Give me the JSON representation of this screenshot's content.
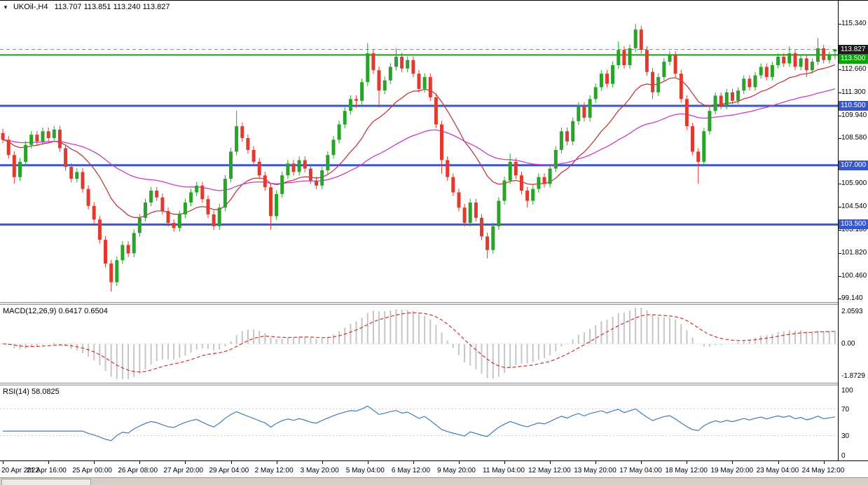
{
  "header": {
    "icon": "▼",
    "symbol_period": "UKOil-,H4",
    "ohlc": "113.707 113.851 113.240 113.827"
  },
  "indicators": {
    "macd_label": "MACD(12,26,9) 0.6417 0.6504",
    "rsi_label": "RSI(14) 58.0825"
  },
  "colors": {
    "up": "#28a428",
    "down": "#e13b30",
    "background": "#ffffff",
    "axis_text": "#000000"
  },
  "chart_data": {
    "type": "candlestick",
    "symbol": "UKOil-",
    "timeframe": "H4",
    "title": "UKOil-,H4 113.707 113.851 113.240 113.827",
    "ylim": [
      98.93,
      116.7
    ],
    "y_ticks": [
      115.34,
      112.66,
      111.3,
      109.94,
      108.58,
      105.9,
      104.54,
      103.18,
      101.82,
      100.46,
      99.14
    ],
    "y_badges": [
      {
        "text": "113.827",
        "color": "#1b1b1b"
      },
      {
        "text": "113.500",
        "color": "#0aa30a"
      },
      {
        "text": "110.500",
        "color": "#3a57c8"
      },
      {
        "text": "107.000",
        "color": "#3a57c8"
      },
      {
        "text": "103.500",
        "color": "#3a57c8"
      }
    ],
    "x_labels": [
      "20 Apr 2022",
      "21 Apr 16:00",
      "25 Apr 00:00",
      "26 Apr 08:00",
      "27 Apr 20:00",
      "29 Apr 04:00",
      "2 May 12:00",
      "3 May 20:00",
      "5 May 04:00",
      "6 May 12:00",
      "9 May 20:00",
      "11 May 04:00",
      "12 May 12:00",
      "13 May 20:00",
      "17 May 04:00",
      "18 May 12:00",
      "19 May 20:00",
      "23 May 04:00",
      "24 May 12:00"
    ],
    "h_lines": [
      {
        "price": 113.827,
        "color": "#888888",
        "width": 1,
        "style": "dashed"
      },
      {
        "price": 113.5,
        "color": "#0aa30a",
        "width": 2,
        "style": "solid"
      },
      {
        "price": 110.5,
        "color": "#3a57c8",
        "width": 3,
        "style": "solid"
      },
      {
        "price": 107.0,
        "color": "#3a57c8",
        "width": 3,
        "style": "solid"
      },
      {
        "price": 103.5,
        "color": "#3a57c8",
        "width": 3,
        "style": "solid"
      }
    ],
    "moving_averages": [
      {
        "type": "ema",
        "period": 16,
        "color": "#c03a3a"
      },
      {
        "type": "ema",
        "period": 50,
        "color": "#c93ac9"
      }
    ],
    "macd": {
      "fast": 12,
      "slow": 26,
      "signal": 9,
      "values_label": "0.6417 0.6504",
      "axis_labels": [
        "2.0593",
        "0.00",
        "-1.8729"
      ],
      "hist_color": "#c6c6c6",
      "signal_color": "#cc3333"
    },
    "rsi": {
      "period": 14,
      "value": 58.0825,
      "color": "#3f7cb6",
      "levels": [
        70,
        30
      ],
      "axis_labels": [
        "100",
        "70",
        "30",
        "0"
      ]
    },
    "candles": [
      [
        108.9,
        109.15,
        108.3,
        108.5
      ],
      [
        108.5,
        108.72,
        107.38,
        107.6
      ],
      [
        107.6,
        107.82,
        105.9,
        106.3
      ],
      [
        106.3,
        107.42,
        106.08,
        107.2
      ],
      [
        107.2,
        108.42,
        106.98,
        108.2
      ],
      [
        108.2,
        109.02,
        107.98,
        108.8
      ],
      [
        108.8,
        109.02,
        108.18,
        108.4
      ],
      [
        108.4,
        109.22,
        108.18,
        109.0
      ],
      [
        109.0,
        109.22,
        108.38,
        108.6
      ],
      [
        108.6,
        109.32,
        108.38,
        109.1
      ],
      [
        109.1,
        109.32,
        107.78,
        108.0
      ],
      [
        108.0,
        108.22,
        106.68,
        106.9
      ],
      [
        106.9,
        107.12,
        105.98,
        106.2
      ],
      [
        106.2,
        106.82,
        105.98,
        106.6
      ],
      [
        106.6,
        106.82,
        105.38,
        105.6
      ],
      [
        105.6,
        105.82,
        104.38,
        104.6
      ],
      [
        104.6,
        104.82,
        103.58,
        103.8
      ],
      [
        103.8,
        104.02,
        102.38,
        102.6
      ],
      [
        102.6,
        102.82,
        100.98,
        101.2
      ],
      [
        101.2,
        101.42,
        99.55,
        100.1
      ],
      [
        100.1,
        101.62,
        99.88,
        101.4
      ],
      [
        101.4,
        102.52,
        101.18,
        102.3
      ],
      [
        102.3,
        102.52,
        101.58,
        101.8
      ],
      [
        101.8,
        103.22,
        101.58,
        103.0
      ],
      [
        103.0,
        104.12,
        102.78,
        103.9
      ],
      [
        103.9,
        105.02,
        103.68,
        104.8
      ],
      [
        104.8,
        105.72,
        104.58,
        105.5
      ],
      [
        105.5,
        105.72,
        104.88,
        105.1
      ],
      [
        105.1,
        105.32,
        104.08,
        104.3
      ],
      [
        104.3,
        104.52,
        103.38,
        103.6
      ],
      [
        103.6,
        103.82,
        103.08,
        103.3
      ],
      [
        103.3,
        104.32,
        103.08,
        104.1
      ],
      [
        104.1,
        105.02,
        103.88,
        104.8
      ],
      [
        104.8,
        105.62,
        104.58,
        105.4
      ],
      [
        105.4,
        106.02,
        105.18,
        105.8
      ],
      [
        105.8,
        106.02,
        104.78,
        105.0
      ],
      [
        105.0,
        105.22,
        103.88,
        104.1
      ],
      [
        104.1,
        104.32,
        103.18,
        103.4
      ],
      [
        103.4,
        104.72,
        103.18,
        104.5
      ],
      [
        104.5,
        106.42,
        104.28,
        106.2
      ],
      [
        106.2,
        108.02,
        105.98,
        107.8
      ],
      [
        107.8,
        110.2,
        107.58,
        109.3
      ],
      [
        109.3,
        109.52,
        108.38,
        108.6
      ],
      [
        108.6,
        108.82,
        107.68,
        107.9
      ],
      [
        107.9,
        108.12,
        106.98,
        107.2
      ],
      [
        107.2,
        107.42,
        106.18,
        106.4
      ],
      [
        106.4,
        106.62,
        105.48,
        105.7
      ],
      [
        105.7,
        105.92,
        103.2,
        104.0
      ],
      [
        104.0,
        105.52,
        103.78,
        105.3
      ],
      [
        105.3,
        106.62,
        105.08,
        106.4
      ],
      [
        106.4,
        107.32,
        106.18,
        107.1
      ],
      [
        107.1,
        107.32,
        106.38,
        106.6
      ],
      [
        106.6,
        107.52,
        106.38,
        107.3
      ],
      [
        107.3,
        107.52,
        106.58,
        106.8
      ],
      [
        106.8,
        107.02,
        105.88,
        106.1
      ],
      [
        106.1,
        106.32,
        105.58,
        105.8
      ],
      [
        105.8,
        106.92,
        105.58,
        106.7
      ],
      [
        106.7,
        107.82,
        106.48,
        107.6
      ],
      [
        107.6,
        108.72,
        107.38,
        108.5
      ],
      [
        108.5,
        109.62,
        108.28,
        109.4
      ],
      [
        109.4,
        110.42,
        109.18,
        110.2
      ],
      [
        110.2,
        111.12,
        109.98,
        110.9
      ],
      [
        110.9,
        111.12,
        110.38,
        110.8
      ],
      [
        110.8,
        112.12,
        110.58,
        111.9
      ],
      [
        111.9,
        114.2,
        111.68,
        113.6
      ],
      [
        113.6,
        113.82,
        112.38,
        112.6
      ],
      [
        112.6,
        112.82,
        110.4,
        111.4
      ],
      [
        111.4,
        112.22,
        111.18,
        112.0
      ],
      [
        112.0,
        113.02,
        111.78,
        112.8
      ],
      [
        112.8,
        113.9,
        112.58,
        113.4
      ],
      [
        113.4,
        113.62,
        112.48,
        112.7
      ],
      [
        112.7,
        113.42,
        112.48,
        113.2
      ],
      [
        113.2,
        113.42,
        112.18,
        112.4
      ],
      [
        112.4,
        112.62,
        111.28,
        111.5
      ],
      [
        111.5,
        112.42,
        111.28,
        112.2
      ],
      [
        112.2,
        112.42,
        110.78,
        111.0
      ],
      [
        111.0,
        111.22,
        109.18,
        109.4
      ],
      [
        109.4,
        109.62,
        106.5,
        107.3
      ],
      [
        107.3,
        107.52,
        106.08,
        106.3
      ],
      [
        106.3,
        106.52,
        105.18,
        105.4
      ],
      [
        105.4,
        105.62,
        104.28,
        104.5
      ],
      [
        104.5,
        104.72,
        103.38,
        103.6
      ],
      [
        103.6,
        105.02,
        103.38,
        104.8
      ],
      [
        104.8,
        105.02,
        103.68,
        103.9
      ],
      [
        103.9,
        104.12,
        102.58,
        102.8
      ],
      [
        102.8,
        103.02,
        101.5,
        102.0
      ],
      [
        102.0,
        103.62,
        101.78,
        103.4
      ],
      [
        103.4,
        105.12,
        103.18,
        104.9
      ],
      [
        104.9,
        106.32,
        104.68,
        106.1
      ],
      [
        106.1,
        107.7,
        105.88,
        107.2
      ],
      [
        107.2,
        107.42,
        106.18,
        106.4
      ],
      [
        106.4,
        106.62,
        105.28,
        105.5
      ],
      [
        105.5,
        105.72,
        104.5,
        104.9
      ],
      [
        104.9,
        105.82,
        104.68,
        105.6
      ],
      [
        105.6,
        106.52,
        105.38,
        106.3
      ],
      [
        106.3,
        106.52,
        105.68,
        105.9
      ],
      [
        105.9,
        107.02,
        105.68,
        106.8
      ],
      [
        106.8,
        108.12,
        106.58,
        107.9
      ],
      [
        107.9,
        109.22,
        107.68,
        109.0
      ],
      [
        109.0,
        109.22,
        108.18,
        108.4
      ],
      [
        108.4,
        109.82,
        108.18,
        109.6
      ],
      [
        109.6,
        110.72,
        109.38,
        110.5
      ],
      [
        110.5,
        110.72,
        109.58,
        109.8
      ],
      [
        109.8,
        111.12,
        109.58,
        110.9
      ],
      [
        110.9,
        111.82,
        110.68,
        111.6
      ],
      [
        111.6,
        112.62,
        111.38,
        112.4
      ],
      [
        112.4,
        112.62,
        111.58,
        111.8
      ],
      [
        111.8,
        113.12,
        111.58,
        112.9
      ],
      [
        112.9,
        114.3,
        112.68,
        113.8
      ],
      [
        113.8,
        114.02,
        112.68,
        112.9
      ],
      [
        112.9,
        114.12,
        112.68,
        113.9
      ],
      [
        113.9,
        115.34,
        113.68,
        115.0
      ],
      [
        115.0,
        115.22,
        113.58,
        113.8
      ],
      [
        113.8,
        114.02,
        112.28,
        112.5
      ],
      [
        112.5,
        112.72,
        110.9,
        111.3
      ],
      [
        111.3,
        112.42,
        111.08,
        112.2
      ],
      [
        112.2,
        113.32,
        111.98,
        113.1
      ],
      [
        113.1,
        113.72,
        112.88,
        113.5
      ],
      [
        113.5,
        113.72,
        112.18,
        112.4
      ],
      [
        112.4,
        112.62,
        110.68,
        110.9
      ],
      [
        110.9,
        111.12,
        109.08,
        109.3
      ],
      [
        109.3,
        109.5,
        107.6,
        107.8
      ],
      [
        107.8,
        108.0,
        105.9,
        107.2
      ],
      [
        107.2,
        109.2,
        107.0,
        109.0
      ],
      [
        109.0,
        110.4,
        108.8,
        110.2
      ],
      [
        110.2,
        111.3,
        110.0,
        111.1
      ],
      [
        111.1,
        111.3,
        110.3,
        110.5
      ],
      [
        110.5,
        111.5,
        110.3,
        111.3
      ],
      [
        111.3,
        111.5,
        110.6,
        110.8
      ],
      [
        110.8,
        111.6,
        110.6,
        111.4
      ],
      [
        111.4,
        112.3,
        111.2,
        112.1
      ],
      [
        112.1,
        112.3,
        111.4,
        111.6
      ],
      [
        111.6,
        112.5,
        111.4,
        112.3
      ],
      [
        112.3,
        113.0,
        112.1,
        112.8
      ],
      [
        112.8,
        113.0,
        112.0,
        112.2
      ],
      [
        112.2,
        113.1,
        112.0,
        112.9
      ],
      [
        112.9,
        113.6,
        112.7,
        113.4
      ],
      [
        113.4,
        113.6,
        112.8,
        113.0
      ],
      [
        113.0,
        114.0,
        112.8,
        113.6
      ],
      [
        113.6,
        113.8,
        112.6,
        112.8
      ],
      [
        112.8,
        113.5,
        112.6,
        113.3
      ],
      [
        113.3,
        113.5,
        112.2,
        112.6
      ],
      [
        112.6,
        113.3,
        112.4,
        113.1
      ],
      [
        113.1,
        114.5,
        112.9,
        113.9
      ],
      [
        113.9,
        114.1,
        113.0,
        113.2
      ],
      [
        113.2,
        113.7,
        113.0,
        113.5
      ],
      [
        113.707,
        113.851,
        113.24,
        113.827
      ]
    ]
  }
}
